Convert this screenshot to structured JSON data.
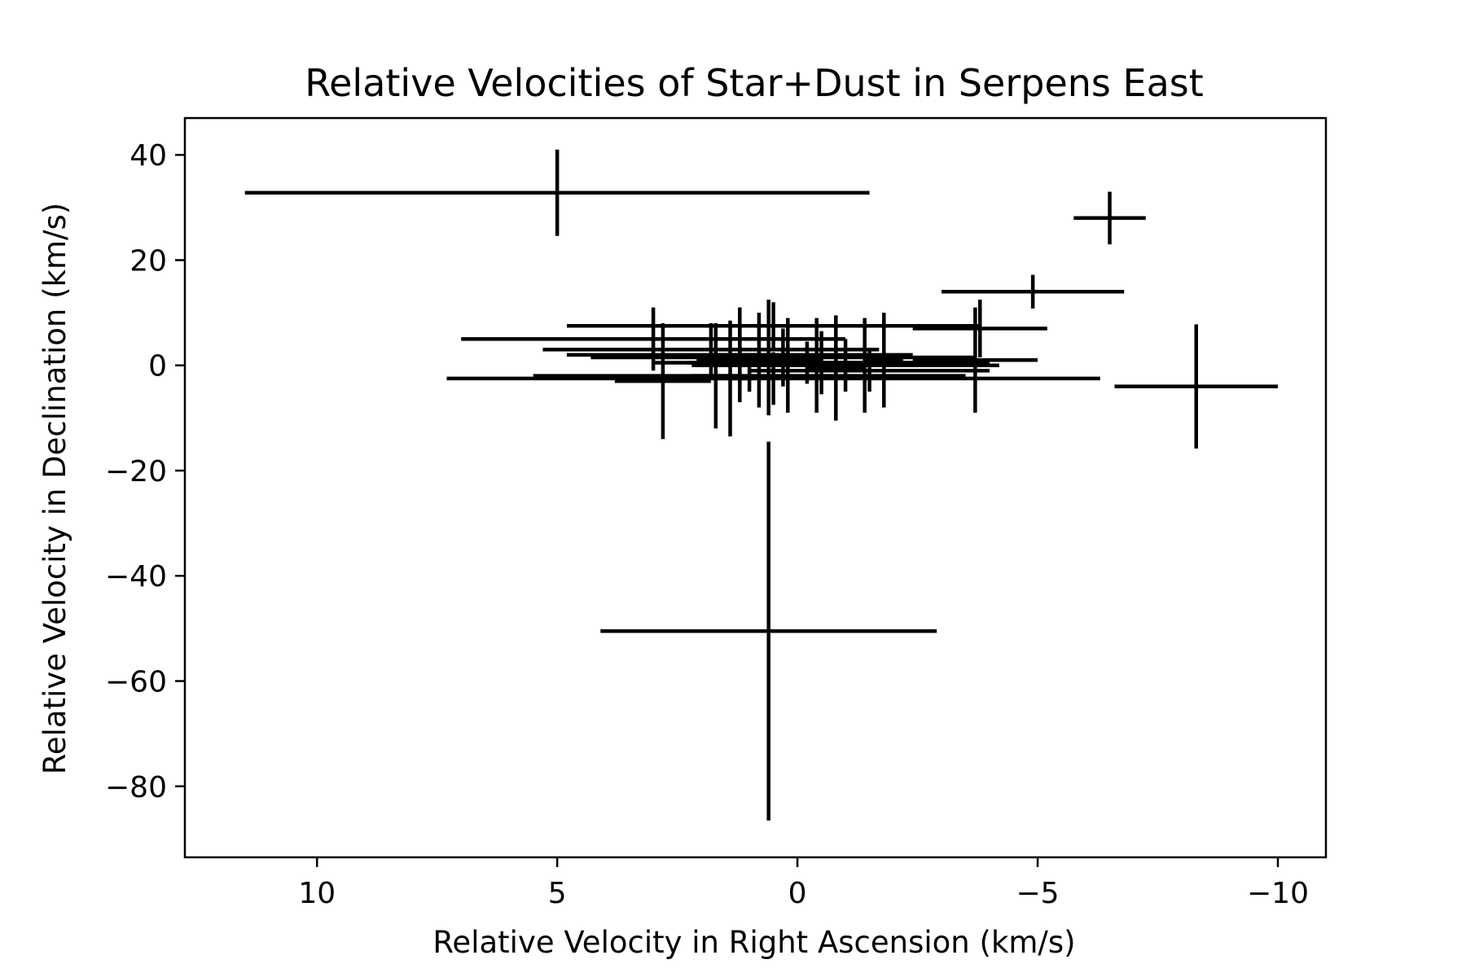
{
  "chart_data": {
    "type": "scatter",
    "title": "Relative Velocities of Star+Dust in Serpens East",
    "xlabel": "Relative Velocity in Right Ascension (km/s)",
    "ylabel": "Relative Velocity in Declination (km/s)",
    "xlim": [
      12.75,
      -11.0
    ],
    "ylim": [
      -93.5,
      47.0
    ],
    "x_inverted": true,
    "xticks": [
      10,
      5,
      0,
      -5,
      -10
    ],
    "xtick_labels": [
      "10",
      "5",
      "0",
      "−5",
      "−10"
    ],
    "yticks": [
      40,
      20,
      0,
      -20,
      -40,
      -60,
      -80
    ],
    "ytick_labels": [
      "40",
      "20",
      "0",
      "−20",
      "−40",
      "−60",
      "−80"
    ],
    "grid": false,
    "marker_color": "#000000",
    "points": [
      {
        "x": 5.0,
        "y": 32.8,
        "xerr": 6.5,
        "yerr": 8.2
      },
      {
        "x": -6.5,
        "y": 28.0,
        "xerr": 0.75,
        "yerr": 5.0
      },
      {
        "x": -4.9,
        "y": 14.0,
        "xerr": 1.9,
        "yerr": 3.2
      },
      {
        "x": -8.3,
        "y": -4.0,
        "xerr": 1.7,
        "yerr": 11.8
      },
      {
        "x": 0.6,
        "y": -50.5,
        "xerr": 3.5,
        "yerr": 36.0
      },
      {
        "x": 0.5,
        "y": 7.5,
        "xerr": 4.3,
        "yerr": 4.5
      },
      {
        "x": -3.8,
        "y": 7.0,
        "xerr": 1.4,
        "yerr": 5.5
      },
      {
        "x": -3.7,
        "y": 1.0,
        "xerr": 1.3,
        "yerr": 10.0
      },
      {
        "x": 3.0,
        "y": 5.0,
        "xerr": 4.0,
        "yerr": 6.0
      },
      {
        "x": 2.8,
        "y": -3.0,
        "xerr": 1.0,
        "yerr": 11.0
      },
      {
        "x": 1.8,
        "y": 3.0,
        "xerr": 3.5,
        "yerr": 5.0
      },
      {
        "x": 1.2,
        "y": 2.0,
        "xerr": 3.6,
        "yerr": 6.0
      },
      {
        "x": 0.5,
        "y": -2.5,
        "xerr": 6.8,
        "yerr": 5.0
      },
      {
        "x": 1.0,
        "y": -2.0,
        "xerr": 4.5,
        "yerr": 3.0
      },
      {
        "x": 0.3,
        "y": 1.5,
        "xerr": 4.0,
        "yerr": 5.5
      },
      {
        "x": -0.5,
        "y": 0.5,
        "xerr": 3.5,
        "yerr": 6.0
      },
      {
        "x": -1.0,
        "y": 0.0,
        "xerr": 3.2,
        "yerr": 5.0
      },
      {
        "x": -1.5,
        "y": -1.0,
        "xerr": 2.5,
        "yerr": 4.0
      },
      {
        "x": 0.8,
        "y": 1.0,
        "xerr": 1.3,
        "yerr": 9.0
      },
      {
        "x": -0.2,
        "y": 0.5,
        "xerr": 2.5,
        "yerr": 4.0
      },
      {
        "x": 1.7,
        "y": -2.0,
        "xerr": 0.5,
        "yerr": 10.0
      },
      {
        "x": 1.4,
        "y": -2.5,
        "xerr": 0.5,
        "yerr": 11.0
      },
      {
        "x": 1.2,
        "y": 2.0,
        "xerr": 0.6,
        "yerr": 9.0
      },
      {
        "x": 0.6,
        "y": 1.5,
        "xerr": 0.7,
        "yerr": 11.0
      },
      {
        "x": 0.2,
        "y": 0.0,
        "xerr": 0.8,
        "yerr": 9.0
      },
      {
        "x": -0.4,
        "y": 0.0,
        "xerr": 0.7,
        "yerr": 9.0
      },
      {
        "x": -0.8,
        "y": -0.5,
        "xerr": 0.6,
        "yerr": 10.0
      },
      {
        "x": -1.4,
        "y": 0.0,
        "xerr": 0.5,
        "yerr": 9.0
      },
      {
        "x": -1.8,
        "y": 1.0,
        "xerr": 0.4,
        "yerr": 9.0
      }
    ]
  }
}
